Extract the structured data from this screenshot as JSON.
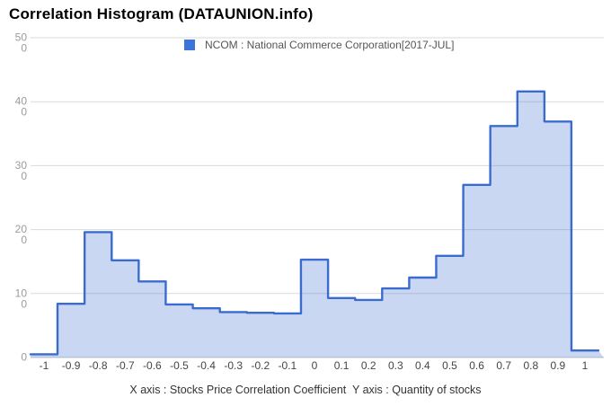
{
  "header": {
    "title": "Correlation Histogram (DATAUNION.info)"
  },
  "chart_data": {
    "type": "area",
    "subtype": "step-histogram",
    "title": "Correlation Histogram (DATAUNION.info)",
    "legend": [
      {
        "label": "NCOM : National Commerce Corporation[2017-JUL]",
        "color": "#3c74d9"
      }
    ],
    "legend_position": "top-center",
    "grid": "horizontal",
    "xlabel": "Stocks Price Correlation Coefficient",
    "ylabel": "Quantity of stocks",
    "footnote": "X axis : Stocks Price Correlation Coefficient  Y axis : Quantity of stocks",
    "categories": [
      "-1",
      "-0.9",
      "-0.8",
      "-0.7",
      "-0.6",
      "-0.5",
      "-0.4",
      "-0.3",
      "-0.2",
      "-0.1",
      "0",
      "0.1",
      "0.2",
      "0.3",
      "0.4",
      "0.5",
      "0.6",
      "0.7",
      "0.8",
      "0.9",
      "1"
    ],
    "values": [
      5,
      84,
      196,
      152,
      119,
      83,
      77,
      71,
      70,
      69,
      153,
      93,
      90,
      108,
      125,
      159,
      270,
      362,
      416,
      369,
      11
    ],
    "xlim": [
      -1,
      1
    ],
    "ylim": [
      0,
      500
    ],
    "y_ticks": [
      {
        "value": 0,
        "display_lines": [
          "0"
        ]
      },
      {
        "value": 100,
        "display_lines": [
          "10",
          "0"
        ]
      },
      {
        "value": 200,
        "display_lines": [
          "20",
          "0"
        ]
      },
      {
        "value": 300,
        "display_lines": [
          "30",
          "0"
        ]
      },
      {
        "value": 400,
        "display_lines": [
          "40",
          "0"
        ]
      },
      {
        "value": 500,
        "display_lines": [
          "50",
          "0"
        ]
      }
    ],
    "colors": {
      "line": "#3a6ccf",
      "area_fill": "rgba(58,108,207,0.27)",
      "legend_square": "#3c74d9",
      "grid_line": "#dadada",
      "axis_line": "#c6c6c6",
      "y_tick_text": "#9b9b9b",
      "x_tick_text": "#454545",
      "title_text": "#000000"
    }
  }
}
